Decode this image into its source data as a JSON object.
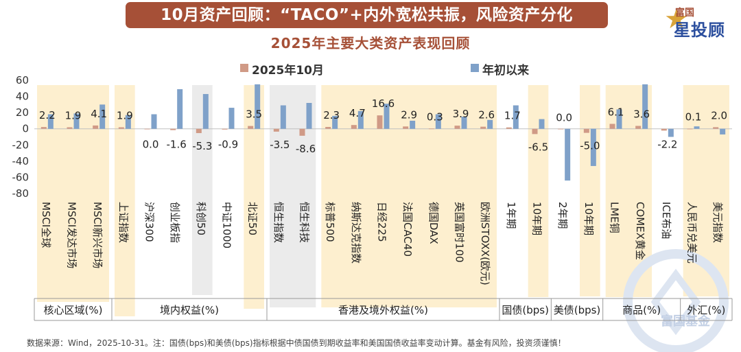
{
  "header": {
    "banner": "10月资产回顾：“TACO”+内外宽松共振，风险资产分化",
    "subtitle": "2025年主要大类资产表现回顾",
    "logo_top": "富国",
    "logo_main": "星投顾"
  },
  "legend": {
    "series1": "2025年10月",
    "series2": "年初以来"
  },
  "watermark": "富国基金",
  "footnote": "数据来源：Wind，2025-10-31。注：国债(bps)和美债(bps)指标根据中债国债到期收益率和美国国债收益率变动计算。基金有风险，投资须谨慎！",
  "colors": {
    "banner": "#a65037",
    "october": "#d09a86",
    "ytd": "#7fa1c9",
    "highlight_yellow": "#fdefcf",
    "highlight_gray": "#ebebeb"
  },
  "chart_data": {
    "type": "bar",
    "title": "2025年主要大类资产表现回顾",
    "ylim": [
      -80,
      60
    ],
    "yticks": [
      60,
      40,
      20,
      0,
      -20,
      -40,
      -60,
      -80
    ],
    "categories": [
      "MSCI全球",
      "MSCI发达市场",
      "MSCI新兴市场",
      "上证指数",
      "沪深300",
      "创业板指",
      "科创50",
      "中证1000",
      "北证50",
      "恒生指数",
      "恒生科技",
      "标普500",
      "纳斯达克指数",
      "日经225",
      "法国CAC40",
      "德国DAX",
      "英国富时100",
      "欧洲STOXX(欧元)",
      "1年期",
      "10年期",
      "2年期",
      "10年期",
      "LME铜",
      "COMEX黄金",
      "ICE布油",
      "人民币兑美元",
      "美元指数"
    ],
    "series": [
      {
        "name": "2025年10月",
        "values": [
          2.2,
          1.9,
          4.1,
          1.9,
          0.0,
          -1.6,
          -5.3,
          -0.9,
          3.5,
          -3.5,
          -8.6,
          2.3,
          4.7,
          16.6,
          2.9,
          0.3,
          3.9,
          2.6,
          1.7,
          -6.5,
          0.0,
          -5.0,
          6.1,
          3.6,
          -2.2,
          0.1,
          2.0
        ]
      },
      {
        "name": "年初以来",
        "values": [
          18,
          19,
          30,
          17,
          18,
          49,
          43,
          26,
          55,
          29,
          32,
          16,
          22,
          31,
          10,
          18,
          15,
          11,
          29,
          12,
          -64,
          -46,
          24,
          55,
          -10,
          3,
          -7
        ]
      }
    ],
    "data_labels": [
      "2.2",
      "1.9",
      "4.1",
      "1.9",
      "0.0",
      "-1.6",
      "-5.3",
      "-0.9",
      "3.5",
      "-3.5",
      "-8.6",
      "2.3",
      "4.7",
      "16.6",
      "2.9",
      "0.3",
      "3.9",
      "2.6",
      "1.7",
      "-6.5",
      "0.0",
      "-5.0",
      "6.1",
      "3.6",
      "-2.2",
      "0.1",
      "2.0"
    ],
    "groups": [
      {
        "label": "核心区域(%)",
        "start": 0,
        "end": 2
      },
      {
        "label": "境内权益(%)",
        "start": 3,
        "end": 8
      },
      {
        "label": "香港及境外权益(%)",
        "start": 9,
        "end": 17
      },
      {
        "label": "国债(bps)",
        "start": 18,
        "end": 19
      },
      {
        "label": "美债(bps)",
        "start": 20,
        "end": 21
      },
      {
        "label": "商品(%)",
        "start": 22,
        "end": 24
      },
      {
        "label": "外汇(%)",
        "start": 25,
        "end": 26
      }
    ]
  }
}
